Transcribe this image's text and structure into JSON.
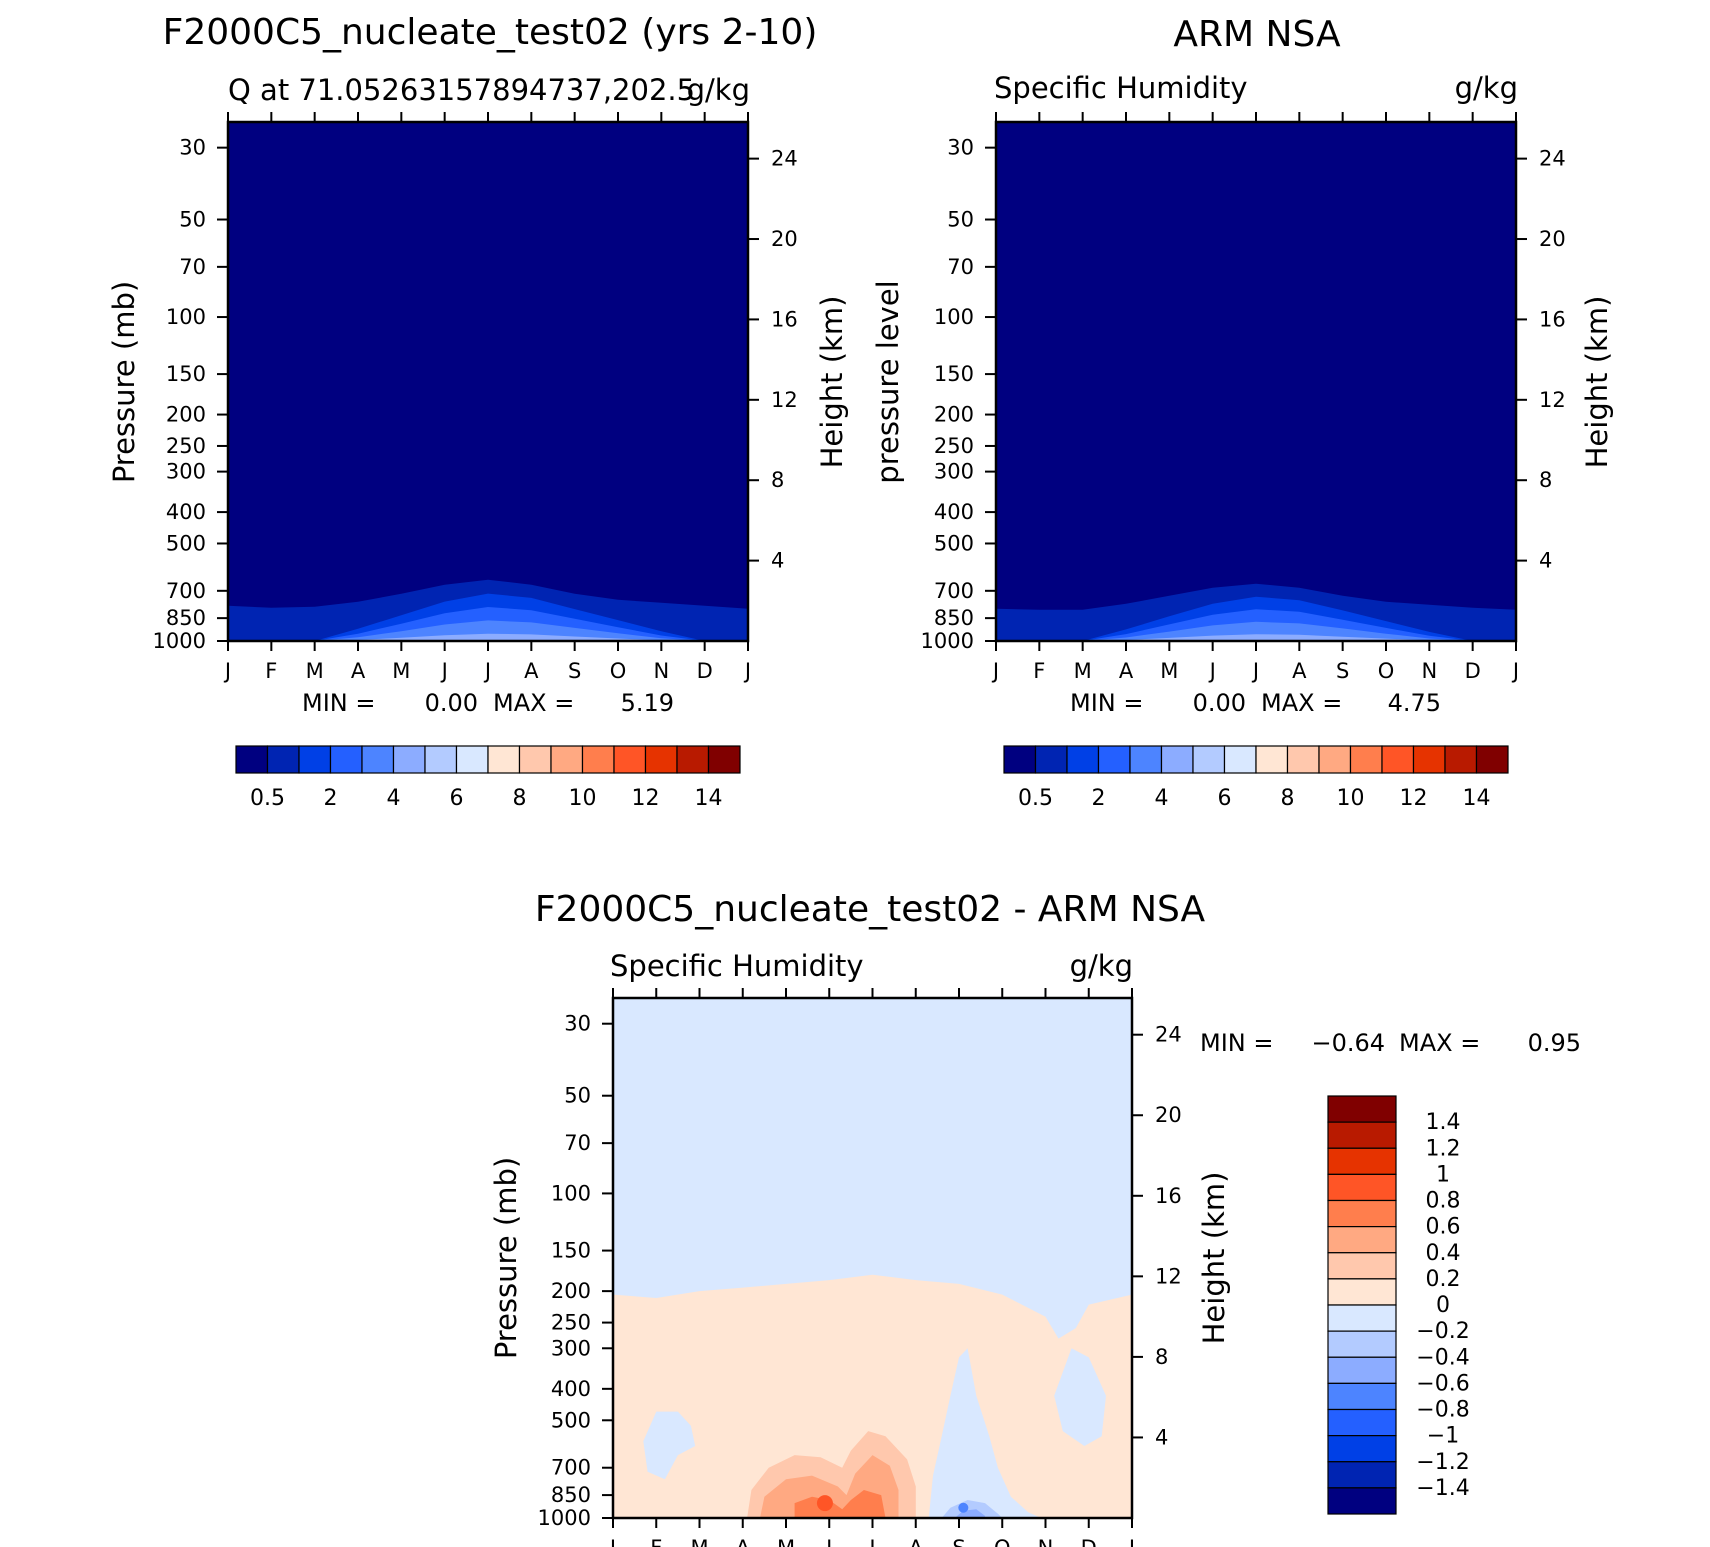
{
  "chart_data": [
    {
      "type": "contour",
      "title": "F2000C5_nucleate_test02 (yrs 2-10)",
      "subtitle_left": "Q at 71.05263157894737,202.5",
      "subtitle_right": "g/kg",
      "ylabel": "Pressure (mb)",
      "y2label": "Height (km)",
      "x_ticks": [
        "J",
        "F",
        "M",
        "A",
        "M",
        "J",
        "J",
        "A",
        "S",
        "O",
        "N",
        "D",
        "J"
      ],
      "y_ticks": [
        30,
        50,
        70,
        100,
        150,
        200,
        250,
        300,
        400,
        500,
        700,
        850,
        1000
      ],
      "y2_ticks": [
        4,
        8,
        12,
        16,
        20,
        24
      ],
      "ylim": [
        1000,
        25
      ],
      "stats": {
        "min_label": "MIN =",
        "min": "0.00",
        "max_label": "MAX =",
        "max": "5.19"
      },
      "colorbar_labels": [
        "0.5",
        "2",
        "4",
        "6",
        "8",
        "10",
        "12",
        "14"
      ],
      "profile": [
        1.75,
        1.65,
        1.7,
        1.95,
        2.35,
        2.8,
        3.05,
        2.8,
        2.35,
        2.05,
        1.9,
        1.75,
        1.6
      ],
      "contour_levels": [
        0.5,
        1,
        2,
        3,
        4,
        5,
        6
      ]
    },
    {
      "type": "contour",
      "title": "ARM NSA",
      "subtitle_left": "Specific Humidity",
      "subtitle_right": "g/kg",
      "ylabel": "pressure level",
      "y2label": "Height (km)",
      "x_ticks": [
        "J",
        "F",
        "M",
        "A",
        "M",
        "J",
        "J",
        "A",
        "S",
        "O",
        "N",
        "D",
        "J"
      ],
      "y_ticks": [
        30,
        50,
        70,
        100,
        150,
        200,
        250,
        300,
        400,
        500,
        700,
        850,
        1000
      ],
      "y2_ticks": [
        4,
        8,
        12,
        16,
        20,
        24
      ],
      "ylim": [
        1000,
        25
      ],
      "stats": {
        "min_label": "MIN =",
        "min": "0.00",
        "max_label": "MAX =",
        "max": "4.75"
      },
      "colorbar_labels": [
        "0.5",
        "2",
        "4",
        "6",
        "8",
        "10",
        "12",
        "14"
      ],
      "profile": [
        1.6,
        1.55,
        1.55,
        1.85,
        2.25,
        2.65,
        2.85,
        2.65,
        2.25,
        1.95,
        1.8,
        1.65,
        1.55
      ],
      "contour_levels": [
        0.5,
        1,
        2,
        3,
        4,
        5,
        6
      ]
    },
    {
      "type": "contour",
      "title": "F2000C5_nucleate_test02 - ARM NSA",
      "subtitle_left": "Specific Humidity",
      "subtitle_right": "g/kg",
      "ylabel": "Pressure (mb)",
      "y2label": "Height (km)",
      "x_ticks": [
        "J",
        "F",
        "M",
        "A",
        "M",
        "J",
        "J",
        "A",
        "S",
        "O",
        "N",
        "D",
        "J"
      ],
      "y_ticks": [
        30,
        50,
        70,
        100,
        150,
        200,
        250,
        300,
        400,
        500,
        700,
        850,
        1000
      ],
      "y2_ticks": [
        4,
        8,
        12,
        16,
        20,
        24
      ],
      "ylim": [
        1000,
        25
      ],
      "stats": {
        "min_label": "MIN =",
        "min": "-0.64",
        "max_label": "MAX =",
        "max": "0.95"
      },
      "colorbar_labels": [
        "1.4",
        "1.2",
        "1",
        "0.8",
        "0.6",
        "0.4",
        "0.2",
        "0",
        "-0.2",
        "-0.4",
        "-0.6",
        "-0.8",
        "-1",
        "-1.2",
        "-1.4"
      ],
      "features": [
        {
          "kind": "positive",
          "month": 4.9,
          "pressure": 900,
          "value": 0.95
        },
        {
          "kind": "positive",
          "month": 6.0,
          "pressure": 880,
          "value": 0.8
        },
        {
          "kind": "negative",
          "month": 8.1,
          "pressure": 930,
          "value": -0.64
        }
      ]
    }
  ],
  "palette": {
    "abs": [
      "#000080",
      "#0024b2",
      "#0040e6",
      "#2460ff",
      "#4d84ff",
      "#8cacff",
      "#b3cbff",
      "#d9e8ff",
      "#ffe6d4",
      "#ffc8ad",
      "#ffa982",
      "#ff7e4d",
      "#ff5526",
      "#e63300",
      "#b81a00",
      "#800000"
    ],
    "diff": [
      "#800000",
      "#b81a00",
      "#e63300",
      "#ff5526",
      "#ff7e4d",
      "#ffa982",
      "#ffc8ad",
      "#ffe6d4",
      "#d9e8ff",
      "#b3cbff",
      "#8cacff",
      "#4d84ff",
      "#2460ff",
      "#0040e6",
      "#0024b2",
      "#000080"
    ]
  }
}
